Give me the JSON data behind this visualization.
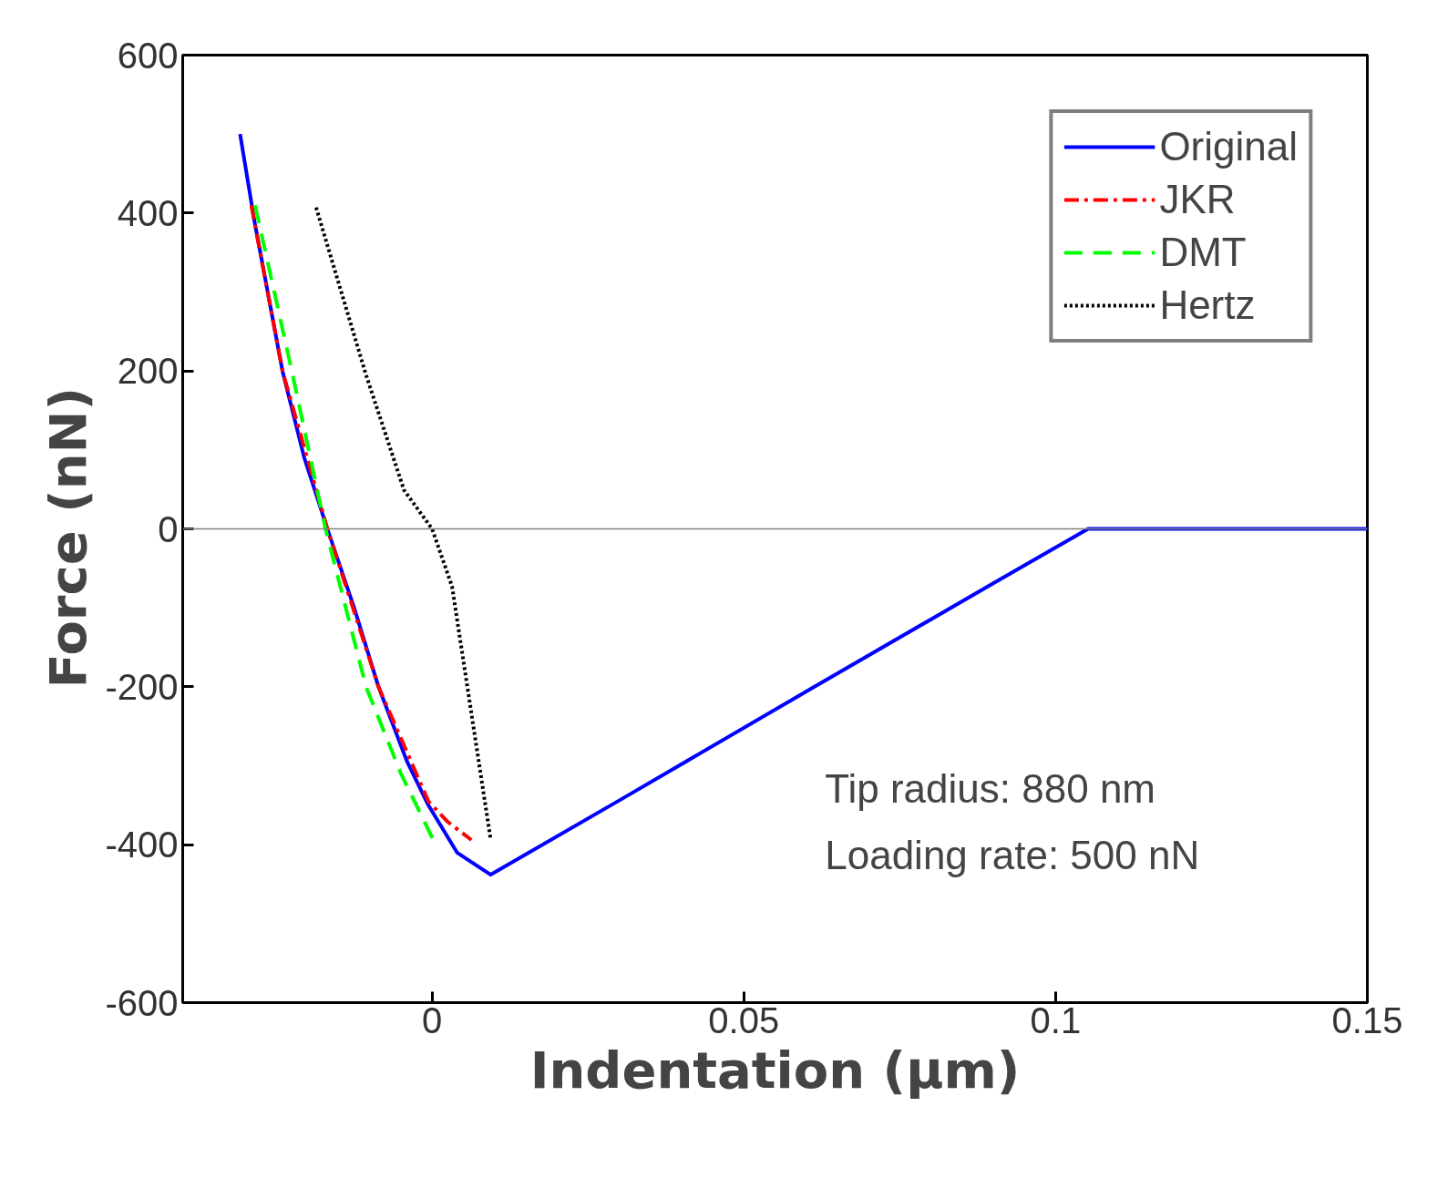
{
  "chart_data": {
    "type": "line",
    "xlabel": "Indentation (μm)",
    "ylabel": "Force  (nN)",
    "xlim": [
      -0.04,
      0.15
    ],
    "ylim": [
      -600,
      600
    ],
    "xticks": [
      0,
      0.05,
      0.1,
      0.15
    ],
    "yticks": [
      -600,
      -400,
      -200,
      0,
      200,
      400,
      600
    ],
    "grid": false,
    "legend": "top right",
    "marker": "none",
    "ref_lines": [
      {
        "axis": "y",
        "value": 0,
        "color": "#808080"
      }
    ],
    "annotations": [
      "Tip radius: 880 nm\nLoading rate: 500 nN"
    ],
    "series": [
      {
        "name": "Original",
        "color": "#0000ff",
        "line_style": "solid",
        "x": [
          -0.0308,
          -0.0285,
          -0.024,
          -0.0205,
          -0.0168,
          -0.0125,
          -0.0086,
          -0.004,
          -0.0006,
          0.004,
          0.0094,
          0.03,
          0.06,
          0.09,
          0.1052,
          0.12,
          0.15
        ],
        "values": [
          500,
          390,
          200,
          90,
          0,
          -100,
          -200,
          -295,
          -350,
          -410,
          -438,
          -344,
          -206,
          -69,
          0,
          0,
          0
        ]
      },
      {
        "name": "JKR",
        "color": "#ff0000",
        "line_style": "dashdot",
        "x": [
          -0.029,
          -0.024,
          -0.0168,
          -0.0086,
          -0.0006,
          0.0025,
          0.0063
        ],
        "values": [
          410,
          200,
          0,
          -200,
          -345,
          -371,
          -394
        ]
      },
      {
        "name": "DMT",
        "color": "#00ff00",
        "line_style": "dashed",
        "x": [
          -0.0284,
          -0.0225,
          -0.0171,
          -0.0106,
          -0.005,
          0.0002
        ],
        "values": [
          410,
          200,
          0,
          -200,
          -310,
          -394
        ]
      },
      {
        "name": "Hertz",
        "color": "#000000",
        "line_style": "dotted",
        "x": [
          -0.0186,
          -0.0106,
          -0.0045,
          0.0,
          0.0032,
          0.0094
        ],
        "values": [
          407,
          195,
          49,
          0,
          -73,
          -394
        ]
      }
    ]
  }
}
